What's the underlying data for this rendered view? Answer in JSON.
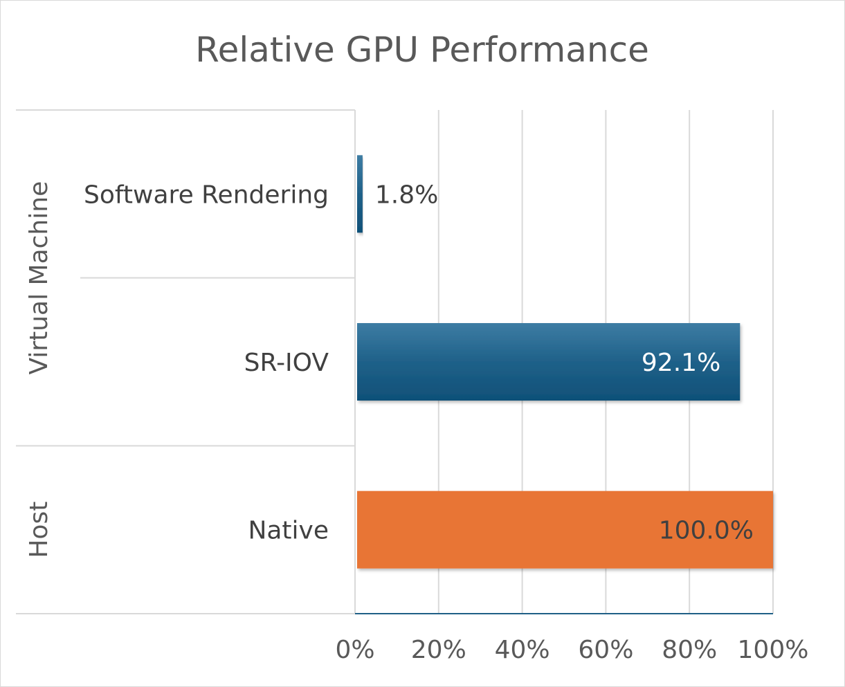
{
  "chart_data": {
    "type": "bar",
    "orientation": "horizontal",
    "title": "Relative GPU Performance",
    "xlabel": "",
    "ylabel": "",
    "xlim": [
      0,
      100
    ],
    "x_ticks": [
      "0%",
      "20%",
      "40%",
      "60%",
      "80%",
      "100%"
    ],
    "grid": "vertical",
    "legend": "none",
    "groups": [
      {
        "name": "Virtual Machine",
        "categories": [
          "Software Rendering",
          "SR-IOV"
        ]
      },
      {
        "name": "Host",
        "categories": [
          "Native"
        ]
      }
    ],
    "categories": [
      "Software Rendering",
      "SR-IOV",
      "Native"
    ],
    "values": [
      1.8,
      92.1,
      100.0
    ],
    "value_labels": [
      "1.8%",
      "92.1%",
      "100.0%"
    ],
    "bar_colors": [
      "#1f5f86",
      "#1f5f86",
      "#e87434"
    ],
    "value_label_colors": [
      "#404040",
      "#ffffff",
      "#404040"
    ]
  }
}
